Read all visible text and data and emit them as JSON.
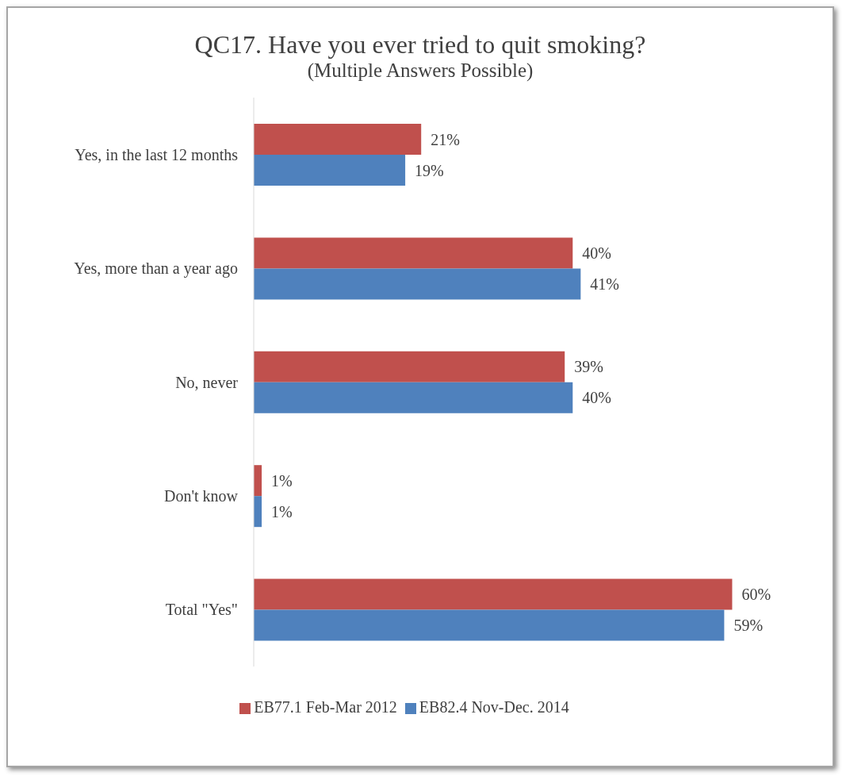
{
  "chart_data": {
    "type": "bar",
    "orientation": "horizontal",
    "title": "QC17. Have you ever tried to quit smoking?",
    "subtitle": "(Multiple Answers Possible)",
    "categories": [
      "Yes, in the last 12 months",
      "Yes, more than a year ago",
      "No, never",
      "Don't know",
      "Total \"Yes\""
    ],
    "series": [
      {
        "name": "EB77.1 Feb-Mar 2012",
        "color": "#c0504d",
        "values": [
          21,
          40,
          39,
          1,
          60
        ],
        "value_labels": [
          "21%",
          "40%",
          "39%",
          "1%",
          "60%"
        ]
      },
      {
        "name": "EB82.4 Nov-Dec. 2014",
        "color": "#4f81bd",
        "values": [
          19,
          41,
          40,
          1,
          59
        ],
        "value_labels": [
          "19%",
          "41%",
          "40%",
          "1%",
          "59%"
        ]
      }
    ],
    "legend": "bottom",
    "grid": false
  }
}
